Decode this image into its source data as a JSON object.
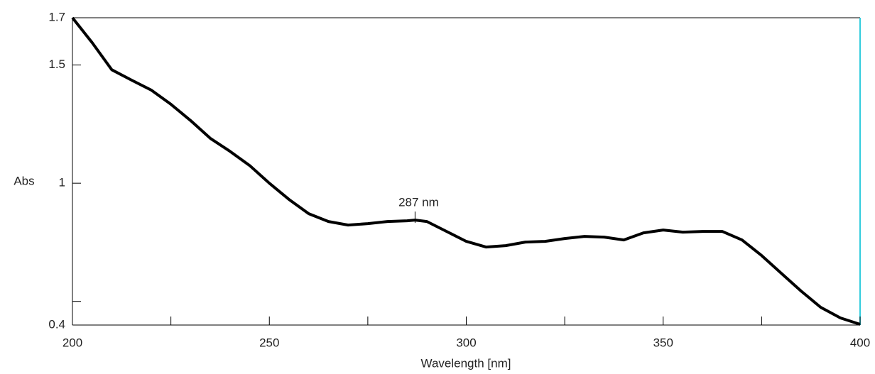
{
  "chart_data": {
    "type": "line",
    "xlabel": "Wavelength [nm]",
    "ylabel": "Abs",
    "x": [
      200,
      205,
      210,
      215,
      220,
      225,
      230,
      235,
      240,
      245,
      250,
      255,
      260,
      265,
      270,
      275,
      280,
      285,
      287,
      290,
      295,
      300,
      305,
      310,
      315,
      320,
      325,
      330,
      335,
      340,
      345,
      350,
      355,
      360,
      365,
      370,
      375,
      380,
      385,
      390,
      395,
      400
    ],
    "values": [
      1.7,
      1.595,
      1.48,
      1.436,
      1.394,
      1.334,
      1.265,
      1.19,
      1.135,
      1.075,
      1.0,
      0.931,
      0.871,
      0.838,
      0.823,
      0.829,
      0.838,
      0.841,
      0.844,
      0.838,
      0.796,
      0.754,
      0.73,
      0.736,
      0.751,
      0.754,
      0.766,
      0.775,
      0.772,
      0.76,
      0.79,
      0.802,
      0.793,
      0.796,
      0.796,
      0.76,
      0.694,
      0.619,
      0.544,
      0.475,
      0.43,
      0.403
    ],
    "color": "#000000",
    "xlim": [
      200,
      400
    ],
    "xticks": [
      200,
      250,
      300,
      350,
      400
    ],
    "minor_xticks": [
      225,
      275,
      325,
      375
    ],
    "ylim": [
      0.4,
      1.7
    ],
    "yticks": [
      0.4,
      1,
      1.5,
      1.7
    ],
    "minor_yticks": [
      0.5
    ],
    "grid": false,
    "annotations": [
      {
        "text": "287 nm",
        "x": 287,
        "y": 0.844
      }
    ]
  }
}
